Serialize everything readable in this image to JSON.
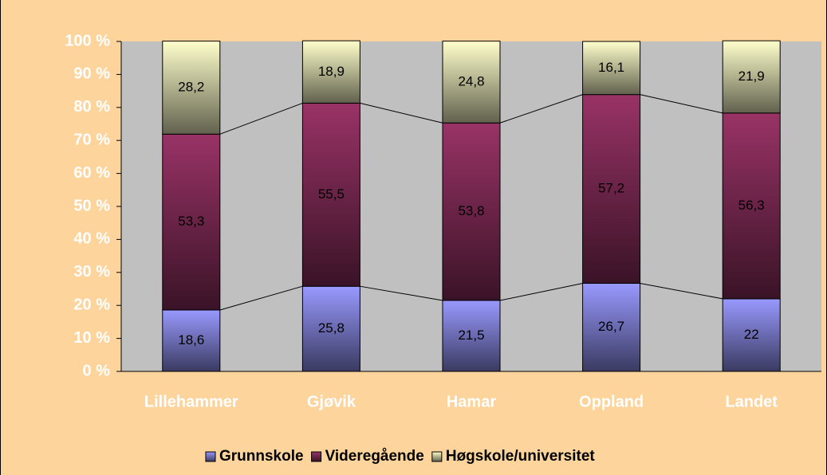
{
  "chart_data": {
    "type": "bar",
    "stacked": true,
    "categories": [
      "Lillehammer",
      "Gjøvik",
      "Hamar",
      "Oppland",
      "Landet"
    ],
    "series": [
      {
        "name": "Grunnskole",
        "color": "#9999ff",
        "values": [
          18.6,
          25.8,
          21.5,
          26.7,
          22
        ],
        "value_labels": [
          "18,6",
          "25,8",
          "21,5",
          "26,7",
          "22"
        ]
      },
      {
        "name": "Videregående",
        "color": "#993366",
        "values": [
          53.3,
          55.5,
          53.8,
          57.2,
          56.3
        ],
        "value_labels": [
          "53,3",
          "55,5",
          "53,8",
          "57,2",
          "56,3"
        ]
      },
      {
        "name": "Høgskole/universitet",
        "color": "#ffffcc",
        "values": [
          28.2,
          18.9,
          24.8,
          16.1,
          21.9
        ],
        "value_labels": [
          "28,2",
          "18,9",
          "24,8",
          "16,1",
          "21,9"
        ]
      }
    ],
    "ylim": [
      0,
      100
    ],
    "yticks": [
      {
        "value": 0,
        "label": "0 %"
      },
      {
        "value": 10,
        "label": "10 %"
      },
      {
        "value": 20,
        "label": "20 %"
      },
      {
        "value": 30,
        "label": "30 %"
      },
      {
        "value": 40,
        "label": "40 %"
      },
      {
        "value": 50,
        "label": "50 %"
      },
      {
        "value": 60,
        "label": "60 %"
      },
      {
        "value": 70,
        "label": "70 %"
      },
      {
        "value": 80,
        "label": "80 %"
      },
      {
        "value": 90,
        "label": "90 %"
      },
      {
        "value": 100,
        "label": "100 %"
      }
    ],
    "grid": false,
    "legend": "bottom"
  }
}
